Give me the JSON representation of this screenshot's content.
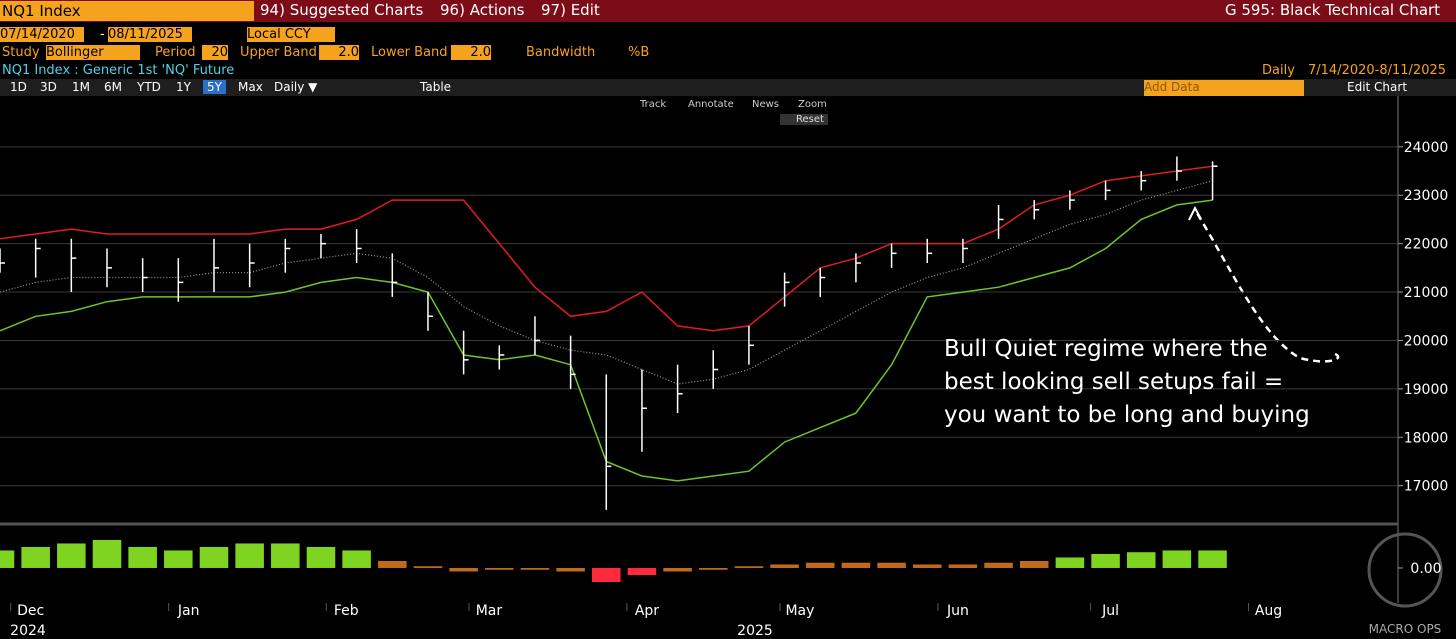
{
  "header": {
    "ticker": "NQ1 Index",
    "menu": [
      "94) Suggested Charts",
      "96) Actions",
      "97) Edit"
    ],
    "chart_name": "G 595: Black Technical Chart"
  },
  "controls": {
    "start_date": "07/14/2020",
    "dash": "-",
    "end_date": "08/11/2025",
    "currency": "Local CCY",
    "study_label": "Study",
    "study": "Bollinger",
    "period_label": "Period",
    "period": "20",
    "upper_label": "Upper Band",
    "upper": "2.0",
    "lower_label": "Lower Band",
    "lower": "2.0",
    "bandwidth": "Bandwidth",
    "pctb": "%B",
    "security": "NQ1 Index : Generic 1st 'NQ' Future",
    "frequency": "Daily",
    "range": "7/14/2020-8/11/2025",
    "buttons": [
      "1D",
      "3D",
      "1M",
      "6M",
      "YTD",
      "1Y",
      "5Y",
      "Max",
      "Daily ▼"
    ],
    "table": "Table",
    "add_data": "Add Data",
    "edit_chart": "Edit Chart",
    "tools": [
      "Track",
      "Annotate",
      "News",
      "Zoom"
    ],
    "reset": "Reset"
  },
  "chart_data": {
    "type": "ohlc",
    "x": [
      0,
      1,
      2,
      3,
      4,
      5,
      6,
      7,
      8,
      9,
      10,
      11,
      12,
      13,
      14,
      15,
      16,
      17,
      18,
      19,
      20,
      21,
      22,
      23,
      24,
      25,
      26,
      27,
      28,
      29,
      30,
      31,
      32,
      33,
      34
    ],
    "xlim": [
      0,
      39.2
    ],
    "xticks": [
      {
        "value": 0.86,
        "label": "Dec"
      },
      {
        "value": 5.29,
        "label": "Jan"
      },
      {
        "value": 9.71,
        "label": "Feb"
      },
      {
        "value": 13.71,
        "label": "Mar"
      },
      {
        "value": 18.14,
        "label": "Apr"
      },
      {
        "value": 22.43,
        "label": "May"
      },
      {
        "value": 26.86,
        "label": "Jun"
      },
      {
        "value": 31.14,
        "label": "Jul"
      },
      {
        "value": 35.57,
        "label": "Aug"
      }
    ],
    "year_labels": [
      "2024",
      "2025"
    ],
    "ylim": [
      16250,
      25050
    ],
    "yticks": [
      17000,
      18000,
      19000,
      20000,
      21000,
      22000,
      23000,
      24000
    ],
    "bar_color": "#ffffff",
    "high": [
      21900,
      22100,
      22100,
      21900,
      21700,
      21700,
      22100,
      22000,
      22100,
      22200,
      22300,
      21800,
      21000,
      20200,
      19900,
      20500,
      20100,
      19300,
      19400,
      19500,
      19800,
      20300,
      21400,
      21500,
      21800,
      22000,
      22100,
      22100,
      22800,
      22900,
      23100,
      23300,
      23500,
      23800,
      23700
    ],
    "low": [
      21400,
      21300,
      21000,
      21100,
      21000,
      20800,
      21000,
      21100,
      21400,
      21700,
      21600,
      20900,
      20200,
      19300,
      19400,
      19700,
      19000,
      16500,
      17700,
      18500,
      19000,
      19500,
      20700,
      20900,
      21200,
      21500,
      21600,
      21600,
      22100,
      22500,
      22700,
      22900,
      23100,
      23300,
      22900
    ],
    "close": [
      21600,
      21900,
      21700,
      21500,
      21300,
      21200,
      21500,
      21600,
      21900,
      22000,
      21900,
      21200,
      20500,
      19600,
      19700,
      20000,
      19300,
      17400,
      18600,
      18900,
      19400,
      19900,
      21200,
      21300,
      21600,
      21800,
      21800,
      21900,
      22500,
      22700,
      22900,
      23100,
      23300,
      23500,
      23600
    ],
    "bands": [
      {
        "color": "#e31b23",
        "values": [
          22100,
          22200,
          22300,
          22200,
          22200,
          22200,
          22200,
          22200,
          22300,
          22300,
          22500,
          22900,
          22900,
          22900,
          22000,
          21100,
          20500,
          20600,
          21000,
          20300,
          20200,
          20300,
          20900,
          21500,
          21700,
          22000,
          22000,
          22000,
          22300,
          22800,
          23000,
          23300,
          23400,
          23500,
          23600
        ]
      },
      {
        "color": "#9a9a9a",
        "dashed": true,
        "values": [
          21000,
          21200,
          21300,
          21300,
          21300,
          21300,
          21400,
          21400,
          21600,
          21700,
          21800,
          21700,
          21300,
          20700,
          20300,
          20000,
          19800,
          19700,
          19400,
          19100,
          19200,
          19400,
          19800,
          20200,
          20600,
          21000,
          21300,
          21500,
          21800,
          22100,
          22400,
          22600,
          22900,
          23100,
          23300
        ]
      },
      {
        "color": "#6cc62a",
        "values": [
          20200,
          20500,
          20600,
          20800,
          20900,
          20900,
          20900,
          20900,
          21000,
          21200,
          21300,
          21200,
          21000,
          19700,
          19600,
          19700,
          19500,
          17500,
          17200,
          17100,
          17200,
          17300,
          17900,
          18200,
          18500,
          19500,
          20900,
          21000,
          21100,
          21300,
          21500,
          21900,
          22500,
          22800,
          22900
        ]
      }
    ],
    "annotation": [
      "Bull Quiet regime where the",
      "best looking sell setups fail =",
      "you want to be long and buying"
    ],
    "lower_panel": {
      "type": "bar",
      "values": [
        0.5,
        0.6,
        0.7,
        0.8,
        0.6,
        0.5,
        0.6,
        0.7,
        0.7,
        0.6,
        0.5,
        0.2,
        0.05,
        -0.1,
        -0.05,
        -0.05,
        -0.1,
        -0.4,
        -0.2,
        -0.1,
        -0.05,
        0.05,
        0.1,
        0.15,
        0.15,
        0.15,
        0.1,
        0.1,
        0.15,
        0.2,
        0.3,
        0.4,
        0.45,
        0.5,
        0.5
      ],
      "colors": [
        "#7fd321",
        "#7fd321",
        "#7fd321",
        "#7fd321",
        "#7fd321",
        "#7fd321",
        "#7fd321",
        "#7fd321",
        "#7fd321",
        "#7fd321",
        "#7fd321",
        "#c06a1c",
        "#c06a1c",
        "#c06a1c",
        "#c06a1c",
        "#c06a1c",
        "#c06a1c",
        "#ff2a3a",
        "#ff2a3a",
        "#c06a1c",
        "#c06a1c",
        "#c06a1c",
        "#c06a1c",
        "#c06a1c",
        "#c06a1c",
        "#c06a1c",
        "#c06a1c",
        "#c06a1c",
        "#c06a1c",
        "#c06a1c",
        "#7fd321",
        "#7fd321",
        "#7fd321",
        "#7fd321",
        "#7fd321"
      ],
      "ylim": [
        -1,
        1.17
      ],
      "yticks": [
        {
          "value": 0,
          "label": "0.00"
        }
      ]
    },
    "watermark": "MACRO OPS"
  }
}
